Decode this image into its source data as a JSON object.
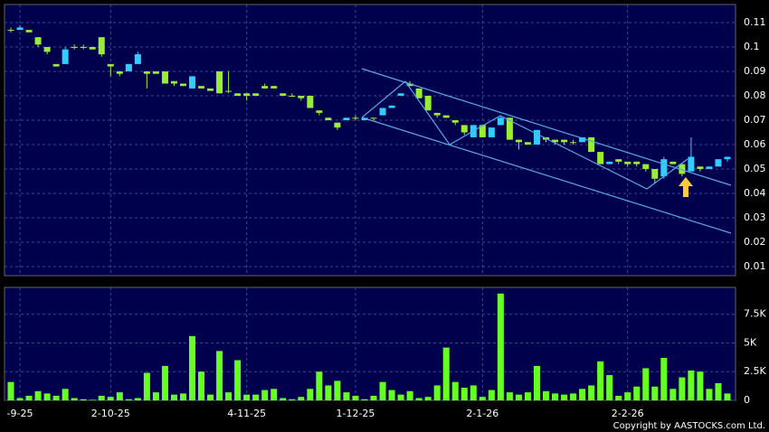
{
  "chart_data": {
    "type": "candlestick",
    "categories": [
      null,
      "-9-25",
      null,
      null,
      null,
      null,
      null,
      null,
      null,
      null,
      null,
      "2-10-25",
      null,
      null,
      null,
      null,
      null,
      null,
      null,
      null,
      null,
      null,
      null,
      null,
      null,
      null,
      "4-11-25",
      null,
      null,
      null,
      null,
      null,
      null,
      null,
      null,
      null,
      null,
      null,
      "1-12-25",
      null,
      null,
      null,
      null,
      null,
      null,
      null,
      null,
      null,
      null,
      null,
      null,
      null,
      "2-1-26",
      null,
      null,
      null,
      null,
      null,
      null,
      null,
      null,
      null,
      null,
      null,
      null,
      null,
      null,
      null,
      "2-2-26",
      null,
      null,
      null,
      null,
      null,
      null,
      null,
      null,
      null,
      null,
      null
    ],
    "open": [
      0.107,
      0.107,
      0.107,
      0.104,
      0.1,
      0.093,
      0.093,
      0.1,
      0.1,
      0.1,
      0.104,
      0.093,
      0.09,
      0.09,
      0.093,
      0.09,
      0.09,
      0.09,
      0.086,
      0.085,
      0.083,
      0.084,
      0.083,
      0.09,
      0.082,
      0.081,
      0.081,
      0.081,
      0.084,
      0.084,
      0.081,
      0.08,
      0.08,
      0.08,
      0.074,
      0.071,
      0.069,
      0.07,
      0.071,
      0.07,
      0.071,
      0.072,
      0.075,
      0.08,
      0.085,
      0.083,
      0.08,
      0.073,
      0.072,
      0.07,
      0.068,
      0.063,
      0.068,
      0.063,
      0.068,
      0.071,
      0.062,
      0.061,
      0.06,
      0.063,
      0.062,
      0.062,
      0.061,
      0.061,
      0.063,
      0.057,
      0.052,
      0.054,
      0.053,
      0.053,
      0.052,
      0.05,
      0.047,
      0.053,
      0.052,
      0.049,
      0.051,
      0.05,
      0.051,
      0.054
    ],
    "high": [
      0.108,
      0.109,
      0.107,
      0.104,
      0.1,
      0.093,
      0.1,
      0.101,
      0.101,
      0.1,
      0.104,
      0.093,
      0.09,
      0.093,
      0.098,
      0.09,
      0.09,
      0.09,
      0.086,
      0.085,
      0.088,
      0.084,
      0.083,
      0.09,
      0.09,
      0.081,
      0.081,
      0.081,
      0.085,
      0.084,
      0.081,
      0.081,
      0.08,
      0.08,
      0.074,
      0.071,
      0.069,
      0.071,
      0.072,
      0.071,
      0.071,
      0.075,
      0.076,
      0.081,
      0.086,
      0.083,
      0.08,
      0.073,
      0.072,
      0.07,
      0.068,
      0.068,
      0.068,
      0.067,
      0.072,
      0.071,
      0.062,
      0.061,
      0.066,
      0.063,
      0.062,
      0.062,
      0.062,
      0.063,
      0.063,
      0.057,
      0.053,
      0.054,
      0.053,
      0.053,
      0.052,
      0.05,
      0.055,
      0.053,
      0.052,
      0.063,
      0.051,
      0.051,
      0.054,
      0.055
    ],
    "low": [
      0.106,
      0.107,
      0.106,
      0.1,
      0.097,
      0.092,
      0.093,
      0.099,
      0.099,
      0.099,
      0.096,
      0.088,
      0.088,
      0.09,
      0.093,
      0.083,
      0.089,
      0.085,
      0.084,
      0.084,
      0.083,
      0.083,
      0.082,
      0.081,
      0.081,
      0.08,
      0.078,
      0.08,
      0.083,
      0.083,
      0.08,
      0.08,
      0.078,
      0.075,
      0.072,
      0.07,
      0.066,
      0.07,
      0.07,
      0.07,
      0.07,
      0.072,
      0.075,
      0.08,
      0.084,
      0.079,
      0.074,
      0.071,
      0.071,
      0.068,
      0.064,
      0.063,
      0.063,
      0.063,
      0.068,
      0.062,
      0.058,
      0.06,
      0.06,
      0.061,
      0.06,
      0.06,
      0.06,
      0.061,
      0.057,
      0.052,
      0.052,
      0.052,
      0.051,
      0.051,
      0.049,
      0.044,
      0.046,
      0.052,
      0.047,
      0.049,
      0.049,
      0.05,
      0.051,
      0.053
    ],
    "close": [
      0.107,
      0.108,
      0.106,
      0.101,
      0.098,
      0.092,
      0.099,
      0.1,
      0.1,
      0.099,
      0.097,
      0.092,
      0.089,
      0.093,
      0.097,
      0.089,
      0.089,
      0.085,
      0.085,
      0.084,
      0.088,
      0.083,
      0.082,
      0.081,
      0.082,
      0.08,
      0.08,
      0.08,
      0.083,
      0.083,
      0.08,
      0.08,
      0.079,
      0.075,
      0.073,
      0.07,
      0.067,
      0.071,
      0.071,
      0.071,
      0.071,
      0.075,
      0.076,
      0.081,
      0.084,
      0.079,
      0.074,
      0.072,
      0.071,
      0.069,
      0.065,
      0.068,
      0.063,
      0.067,
      0.071,
      0.062,
      0.061,
      0.06,
      0.066,
      0.062,
      0.061,
      0.061,
      0.061,
      0.063,
      0.057,
      0.052,
      0.053,
      0.053,
      0.052,
      0.052,
      0.05,
      0.046,
      0.054,
      0.052,
      0.048,
      0.055,
      0.05,
      0.051,
      0.054,
      0.055
    ],
    "volume": [
      1600,
      200,
      400,
      800,
      600,
      400,
      1000,
      200,
      100,
      50,
      400,
      300,
      700,
      100,
      200,
      2400,
      700,
      3000,
      500,
      600,
      5600,
      2500,
      500,
      4300,
      700,
      3500,
      500,
      500,
      900,
      1000,
      200,
      100,
      300,
      1000,
      2500,
      1300,
      1700,
      700,
      400,
      100,
      400,
      1600,
      900,
      500,
      800,
      200,
      300,
      1300,
      4600,
      1600,
      1100,
      1300,
      300,
      900,
      9300,
      700,
      500,
      700,
      3000,
      800,
      600,
      500,
      600,
      1000,
      1300,
      3400,
      2200,
      400,
      700,
      1200,
      2800,
      1200,
      3700,
      1000,
      2000,
      2600,
      2500,
      1000,
      1500,
      600
    ],
    "up_color": "#33ccff",
    "down_color": "#99ee33",
    "volume_color": "#66ff22",
    "ylim": [
      0.0063,
      0.1174
    ],
    "yticks": [
      0.01,
      0.02,
      0.03,
      0.04,
      0.05,
      0.06,
      0.07,
      0.08,
      0.09,
      0.1,
      0.11
    ],
    "volume_ylim": [
      0,
      9840
    ],
    "volume_yticks": [
      0,
      {
        "value": 2500,
        "label": "2.5K"
      },
      {
        "value": 5000,
        "label": "5K"
      },
      {
        "value": 7500,
        "label": "7.5K"
      }
    ],
    "grid": true
  },
  "copyright": "Copyright by AASTOCKS.com Ltd."
}
